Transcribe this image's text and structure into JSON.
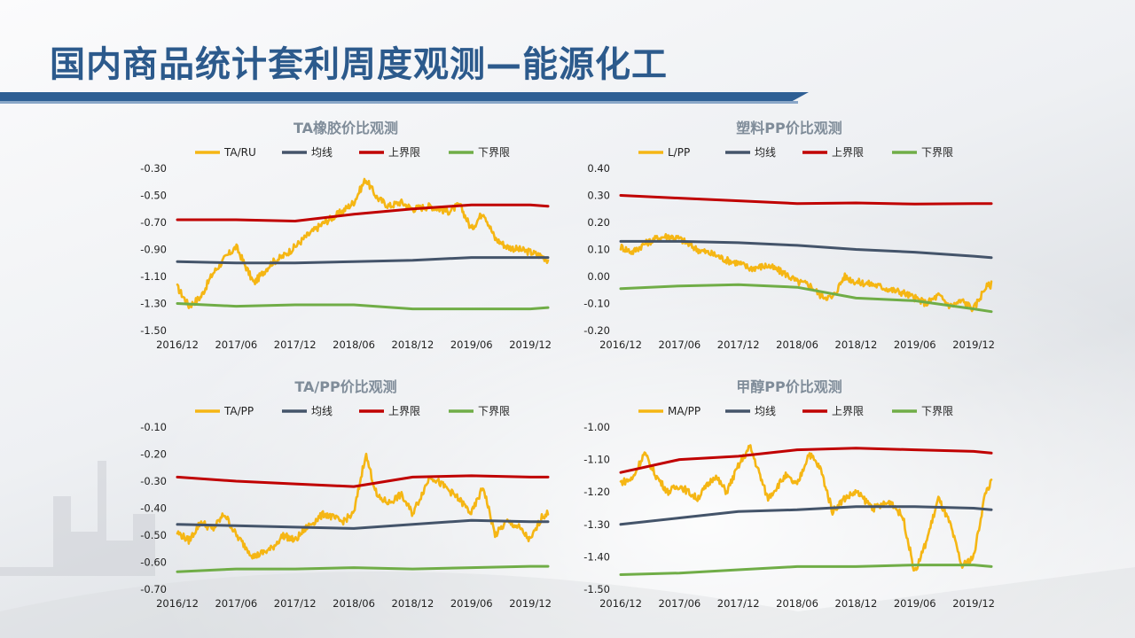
{
  "page": {
    "title": "国内商品统计套利周度观测—能源化工"
  },
  "colors": {
    "ratio": "#f5b614",
    "mean": "#44546a",
    "upper": "#c00000",
    "lower": "#70ad47",
    "title": "#2c5a8c",
    "subtitle": "#7f8c99"
  },
  "legend_labels": {
    "mean": "均线",
    "upper": "上界限",
    "lower": "下界限"
  },
  "x_ticks": [
    "2016/12",
    "2017/06",
    "2017/12",
    "2018/06",
    "2018/12",
    "2019/06",
    "2019/12"
  ],
  "chart_data": [
    {
      "type": "line",
      "title": "TA橡胶价比观测",
      "ratio_name": "TA/RU",
      "ylim": [
        -1.5,
        -0.3
      ],
      "yticks": [
        "-0.30",
        "-0.50",
        "-0.70",
        "-0.90",
        "-1.10",
        "-1.30",
        "-1.50"
      ],
      "x_ticks": [
        "2016/12",
        "2017/06",
        "2017/12",
        "2018/06",
        "2018/12",
        "2019/06",
        "2019/12"
      ],
      "grid": false,
      "legend_position": "top",
      "series": [
        {
          "name": "TA/RU",
          "role": "ratio",
          "x": [
            0,
            0.2,
            0.4,
            0.6,
            0.8,
            1.0,
            1.3,
            1.6,
            1.8,
            2.0,
            2.2,
            2.5,
            2.8,
            3.0,
            3.2,
            3.4,
            3.6,
            3.8,
            4.0,
            4.3,
            4.6,
            4.8,
            5.0,
            5.2,
            5.4,
            5.6,
            5.8,
            6.0,
            6.2,
            6.3
          ],
          "values": [
            -1.18,
            -1.32,
            -1.25,
            -1.08,
            -0.97,
            -0.88,
            -1.15,
            -1.0,
            -0.95,
            -0.88,
            -0.8,
            -0.7,
            -0.62,
            -0.55,
            -0.38,
            -0.52,
            -0.58,
            -0.55,
            -0.6,
            -0.58,
            -0.62,
            -0.57,
            -0.75,
            -0.62,
            -0.82,
            -0.88,
            -0.9,
            -0.92,
            -0.95,
            -0.98
          ]
        },
        {
          "name": "均线",
          "role": "mean",
          "x": [
            0,
            1,
            2,
            3,
            4,
            5,
            6,
            6.3
          ],
          "values": [
            -0.99,
            -1.0,
            -1.0,
            -0.99,
            -0.98,
            -0.96,
            -0.96,
            -0.96
          ]
        },
        {
          "name": "上界限",
          "role": "upper",
          "x": [
            0,
            1,
            2,
            3,
            4,
            5,
            6,
            6.3
          ],
          "values": [
            -0.68,
            -0.68,
            -0.69,
            -0.64,
            -0.6,
            -0.57,
            -0.57,
            -0.58
          ]
        },
        {
          "name": "下界限",
          "role": "lower",
          "x": [
            0,
            1,
            2,
            3,
            4,
            5,
            6,
            6.3
          ],
          "values": [
            -1.3,
            -1.32,
            -1.31,
            -1.31,
            -1.34,
            -1.34,
            -1.34,
            -1.33
          ]
        }
      ]
    },
    {
      "type": "line",
      "title": "塑料PP价比观测",
      "ratio_name": "L/PP",
      "ylim": [
        -0.2,
        0.4
      ],
      "yticks": [
        "0.40",
        "0.30",
        "0.20",
        "0.10",
        "0.00",
        "-0.10",
        "-0.20"
      ],
      "x_ticks": [
        "2016/12",
        "2017/06",
        "2017/12",
        "2018/06",
        "2018/12",
        "2019/06",
        "2019/12"
      ],
      "grid": false,
      "legend_position": "top",
      "series": [
        {
          "name": "L/PP",
          "role": "ratio",
          "x": [
            0,
            0.2,
            0.4,
            0.6,
            0.8,
            1.0,
            1.3,
            1.6,
            1.8,
            2.0,
            2.2,
            2.5,
            2.8,
            3.0,
            3.2,
            3.4,
            3.6,
            3.8,
            4.0,
            4.3,
            4.6,
            4.8,
            5.0,
            5.2,
            5.4,
            5.6,
            5.8,
            6.0,
            6.2,
            6.3
          ],
          "values": [
            0.11,
            0.09,
            0.12,
            0.14,
            0.15,
            0.14,
            0.1,
            0.08,
            0.06,
            0.05,
            0.03,
            0.04,
            0.01,
            -0.02,
            -0.03,
            -0.07,
            -0.08,
            0.0,
            -0.02,
            -0.03,
            -0.05,
            -0.06,
            -0.08,
            -0.1,
            -0.07,
            -0.11,
            -0.09,
            -0.12,
            -0.04,
            -0.03
          ]
        },
        {
          "name": "均线",
          "role": "mean",
          "x": [
            0,
            1,
            2,
            3,
            4,
            5,
            6,
            6.3
          ],
          "values": [
            0.13,
            0.13,
            0.125,
            0.115,
            0.1,
            0.09,
            0.075,
            0.07
          ]
        },
        {
          "name": "上界限",
          "role": "upper",
          "x": [
            0,
            1,
            2,
            3,
            4,
            5,
            6,
            6.3
          ],
          "values": [
            0.3,
            0.29,
            0.28,
            0.27,
            0.272,
            0.268,
            0.27,
            0.27
          ]
        },
        {
          "name": "下界限",
          "role": "lower",
          "x": [
            0,
            1,
            2,
            3,
            4,
            5,
            6,
            6.3
          ],
          "values": [
            -0.045,
            -0.035,
            -0.03,
            -0.04,
            -0.08,
            -0.09,
            -0.12,
            -0.13
          ]
        }
      ]
    },
    {
      "type": "line",
      "title": "TA/PP价比观测",
      "ratio_name": "TA/PP",
      "ylim": [
        -0.7,
        -0.1
      ],
      "yticks": [
        "-0.10",
        "-0.20",
        "-0.30",
        "-0.40",
        "-0.50",
        "-0.60",
        "-0.70"
      ],
      "x_ticks": [
        "2016/12",
        "2017/06",
        "2017/12",
        "2018/06",
        "2018/12",
        "2019/06",
        "2019/12"
      ],
      "grid": false,
      "legend_position": "top",
      "series": [
        {
          "name": "TA/PP",
          "role": "ratio",
          "x": [
            0,
            0.2,
            0.4,
            0.6,
            0.8,
            1.0,
            1.3,
            1.6,
            1.8,
            2.0,
            2.2,
            2.5,
            2.8,
            3.0,
            3.2,
            3.4,
            3.6,
            3.8,
            4.0,
            4.3,
            4.6,
            4.8,
            5.0,
            5.2,
            5.4,
            5.6,
            5.8,
            6.0,
            6.2,
            6.3
          ],
          "values": [
            -0.49,
            -0.52,
            -0.45,
            -0.48,
            -0.42,
            -0.5,
            -0.58,
            -0.55,
            -0.5,
            -0.52,
            -0.47,
            -0.42,
            -0.45,
            -0.42,
            -0.2,
            -0.36,
            -0.38,
            -0.35,
            -0.42,
            -0.28,
            -0.33,
            -0.37,
            -0.42,
            -0.32,
            -0.5,
            -0.45,
            -0.47,
            -0.52,
            -0.43,
            -0.42
          ]
        },
        {
          "name": "均线",
          "role": "mean",
          "x": [
            0,
            1,
            2,
            3,
            4,
            5,
            6,
            6.3
          ],
          "values": [
            -0.46,
            -0.465,
            -0.47,
            -0.475,
            -0.46,
            -0.445,
            -0.45,
            -0.45
          ]
        },
        {
          "name": "上界限",
          "role": "upper",
          "x": [
            0,
            1,
            2,
            3,
            4,
            5,
            6,
            6.3
          ],
          "values": [
            -0.285,
            -0.3,
            -0.31,
            -0.32,
            -0.285,
            -0.28,
            -0.285,
            -0.285
          ]
        },
        {
          "name": "下界限",
          "role": "lower",
          "x": [
            0,
            1,
            2,
            3,
            4,
            5,
            6,
            6.3
          ],
          "values": [
            -0.635,
            -0.625,
            -0.625,
            -0.62,
            -0.625,
            -0.62,
            -0.615,
            -0.615
          ]
        }
      ]
    },
    {
      "type": "line",
      "title": "甲醇PP价比观测",
      "ratio_name": "MA/PP",
      "ylim": [
        -1.5,
        -1.0
      ],
      "yticks": [
        "-1.00",
        "-1.10",
        "-1.20",
        "-1.30",
        "-1.40",
        "-1.50"
      ],
      "x_ticks": [
        "2016/12",
        "2017/06",
        "2017/12",
        "2018/06",
        "2018/12",
        "2019/06",
        "2019/12"
      ],
      "grid": false,
      "legend_position": "top",
      "series": [
        {
          "name": "MA/PP",
          "role": "ratio",
          "x": [
            0,
            0.2,
            0.4,
            0.6,
            0.8,
            1.0,
            1.3,
            1.6,
            1.8,
            2.0,
            2.2,
            2.5,
            2.8,
            3.0,
            3.2,
            3.4,
            3.6,
            3.8,
            4.0,
            4.3,
            4.6,
            4.8,
            5.0,
            5.2,
            5.4,
            5.6,
            5.8,
            6.0,
            6.2,
            6.3
          ],
          "values": [
            -1.17,
            -1.16,
            -1.08,
            -1.15,
            -1.2,
            -1.18,
            -1.22,
            -1.15,
            -1.2,
            -1.12,
            -1.06,
            -1.22,
            -1.15,
            -1.18,
            -1.08,
            -1.13,
            -1.26,
            -1.22,
            -1.2,
            -1.25,
            -1.23,
            -1.28,
            -1.45,
            -1.35,
            -1.22,
            -1.3,
            -1.43,
            -1.4,
            -1.2,
            -1.17
          ]
        },
        {
          "name": "均线",
          "role": "mean",
          "x": [
            0,
            1,
            2,
            3,
            4,
            5,
            6,
            6.3
          ],
          "values": [
            -1.3,
            -1.28,
            -1.26,
            -1.255,
            -1.245,
            -1.245,
            -1.25,
            -1.255
          ]
        },
        {
          "name": "上界限",
          "role": "upper",
          "x": [
            0,
            1,
            2,
            3,
            4,
            5,
            6,
            6.3
          ],
          "values": [
            -1.14,
            -1.1,
            -1.09,
            -1.07,
            -1.065,
            -1.07,
            -1.075,
            -1.08
          ]
        },
        {
          "name": "下界限",
          "role": "lower",
          "x": [
            0,
            1,
            2,
            3,
            4,
            5,
            6,
            6.3
          ],
          "values": [
            -1.455,
            -1.45,
            -1.44,
            -1.43,
            -1.43,
            -1.425,
            -1.425,
            -1.43
          ]
        }
      ]
    }
  ]
}
